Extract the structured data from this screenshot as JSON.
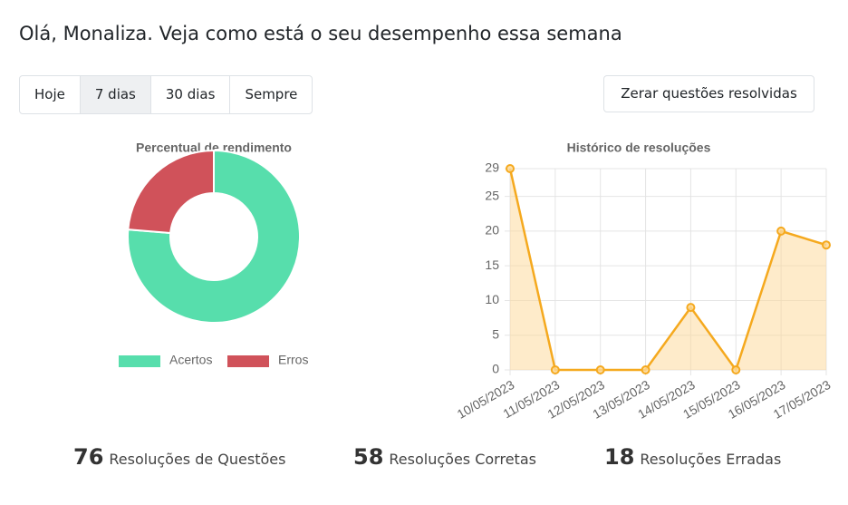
{
  "header": {
    "title": "Olá, Monaliza. Veja como está o seu desempenho essa semana"
  },
  "tabs": [
    "Hoje",
    "7 dias",
    "30 dias",
    "Sempre"
  ],
  "button": "Zerar questões resolvidas",
  "chart_data": [
    {
      "type": "pie",
      "title": "Percentual de rendimento",
      "categories": [
        "Acertos",
        "Erros"
      ],
      "values": [
        58,
        18
      ],
      "colors": [
        "#57deac",
        "#d0525a"
      ],
      "legend": "bottom"
    },
    {
      "type": "line",
      "title": "Histórico de resoluções",
      "categories": [
        "10/05/2023",
        "11/05/2023",
        "12/05/2023",
        "13/05/2023",
        "14/05/2023",
        "15/05/2023",
        "16/05/2023",
        "17/05/2023"
      ],
      "values": [
        29,
        0,
        0,
        0,
        9,
        0,
        20,
        18
      ],
      "color": "#f5a91e",
      "fill": "rgba(253,216,150,0.5)",
      "ylim": [
        0,
        29
      ],
      "yticks": [
        0,
        5,
        10,
        15,
        20,
        25,
        29
      ],
      "grid": true
    }
  ],
  "stats": [
    {
      "value": 76,
      "label": "Resoluções de Questões"
    },
    {
      "value": 58,
      "label": "Resoluções Corretas"
    },
    {
      "value": 18,
      "label": "Resoluções Erradas"
    }
  ]
}
